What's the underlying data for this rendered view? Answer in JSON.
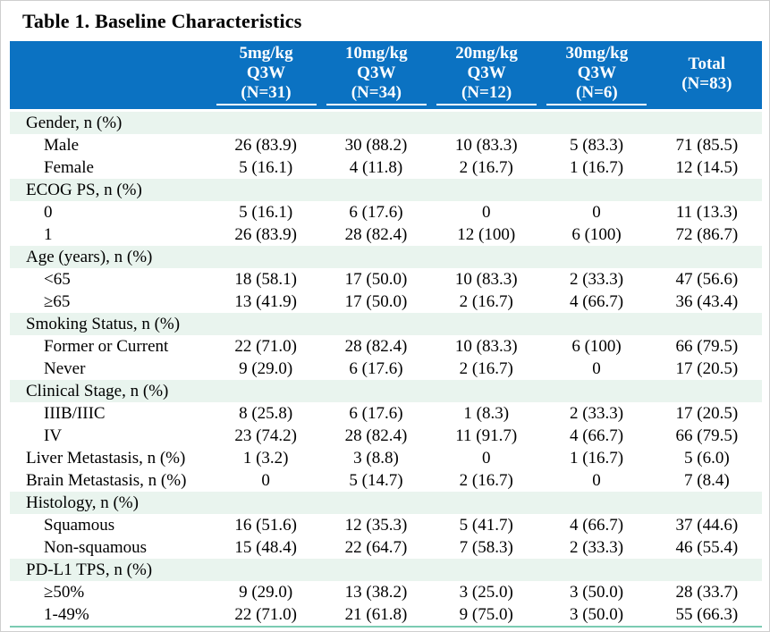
{
  "title": "Table 1. Baseline Characteristics",
  "colors": {
    "header_bg": "#0B72C2",
    "header_text": "#FFFFFF",
    "band_bg": "#E9F4EE",
    "bottom_line": "#7BCBB2",
    "body_text": "#000000"
  },
  "table": {
    "columns": [
      {
        "lines": [
          "5mg/kg",
          "Q3W",
          "(N=31)"
        ],
        "underline": true
      },
      {
        "lines": [
          "10mg/kg",
          "Q3W",
          "(N=34)"
        ],
        "underline": true
      },
      {
        "lines": [
          "20mg/kg",
          "Q3W",
          "(N=12)"
        ],
        "underline": true
      },
      {
        "lines": [
          "30mg/kg",
          "Q3W",
          "(N=6)"
        ],
        "underline": true
      },
      {
        "lines": [
          "Total",
          "(N=83)"
        ],
        "underline": false
      }
    ],
    "rows": [
      {
        "type": "section",
        "label": "Gender, n (%)",
        "values": []
      },
      {
        "type": "sub",
        "label": "Male",
        "values": [
          "26 (83.9)",
          "30 (88.2)",
          "10 (83.3)",
          "5 (83.3)",
          "71 (85.5)"
        ]
      },
      {
        "type": "sub",
        "label": "Female",
        "values": [
          "5 (16.1)",
          "4 (11.8)",
          "2 (16.7)",
          "1 (16.7)",
          "12 (14.5)"
        ]
      },
      {
        "type": "section",
        "label": "ECOG PS, n (%)",
        "values": []
      },
      {
        "type": "sub",
        "label": "0",
        "values": [
          "5 (16.1)",
          "6 (17.6)",
          "0",
          "0",
          "11 (13.3)"
        ]
      },
      {
        "type": "sub",
        "label": "1",
        "values": [
          "26 (83.9)",
          "28 (82.4)",
          "12 (100)",
          "6 (100)",
          "72 (86.7)"
        ]
      },
      {
        "type": "section",
        "label": "Age (years), n (%)",
        "values": []
      },
      {
        "type": "sub",
        "label": "<65",
        "values": [
          "18 (58.1)",
          "17 (50.0)",
          "10 (83.3)",
          "2 (33.3)",
          "47 (56.6)"
        ]
      },
      {
        "type": "sub",
        "label": "≥65",
        "values": [
          "13 (41.9)",
          "17 (50.0)",
          "2 (16.7)",
          "4 (66.7)",
          "36 (43.4)"
        ]
      },
      {
        "type": "section",
        "label": "Smoking Status, n (%)",
        "values": []
      },
      {
        "type": "sub",
        "label": "Former or Current",
        "values": [
          "22 (71.0)",
          "28 (82.4)",
          "10 (83.3)",
          "6 (100)",
          "66 (79.5)"
        ]
      },
      {
        "type": "sub",
        "label": "Never",
        "values": [
          "9 (29.0)",
          "6 (17.6)",
          "2 (16.7)",
          "0",
          "17 (20.5)"
        ]
      },
      {
        "type": "section",
        "label": "Clinical Stage, n (%)",
        "values": []
      },
      {
        "type": "sub",
        "label": "IIIB/IIIC",
        "values": [
          "8 (25.8)",
          "6 (17.6)",
          "1 (8.3)",
          "2 (33.3)",
          "17 (20.5)"
        ]
      },
      {
        "type": "sub",
        "label": "IV",
        "values": [
          "23 (74.2)",
          "28 (82.4)",
          "11 (91.7)",
          "4 (66.7)",
          "66 (79.5)"
        ]
      },
      {
        "type": "flat",
        "label": "Liver Metastasis, n (%)",
        "values": [
          "1 (3.2)",
          "3 (8.8)",
          "0",
          "1 (16.7)",
          "5 (6.0)"
        ]
      },
      {
        "type": "flat",
        "label": "Brain Metastasis, n (%)",
        "values": [
          "0",
          "5 (14.7)",
          "2 (16.7)",
          "0",
          "7 (8.4)"
        ]
      },
      {
        "type": "section",
        "label": "Histology, n (%)",
        "values": []
      },
      {
        "type": "sub",
        "label": "Squamous",
        "values": [
          "16 (51.6)",
          "12 (35.3)",
          "5 (41.7)",
          "4 (66.7)",
          "37 (44.6)"
        ]
      },
      {
        "type": "sub",
        "label": "Non-squamous",
        "values": [
          "15 (48.4)",
          "22 (64.7)",
          "7 (58.3)",
          "2 (33.3)",
          "46 (55.4)"
        ]
      },
      {
        "type": "section",
        "label": "PD-L1 TPS, n (%)",
        "values": []
      },
      {
        "type": "sub",
        "label": "≥50%",
        "values": [
          "9 (29.0)",
          "13 (38.2)",
          "3 (25.0)",
          "3 (50.0)",
          "28 (33.7)"
        ]
      },
      {
        "type": "sub",
        "label": "1-49%",
        "values": [
          "22 (71.0)",
          "21 (61.8)",
          "9 (75.0)",
          "3 (50.0)",
          "55 (66.3)"
        ]
      }
    ]
  }
}
